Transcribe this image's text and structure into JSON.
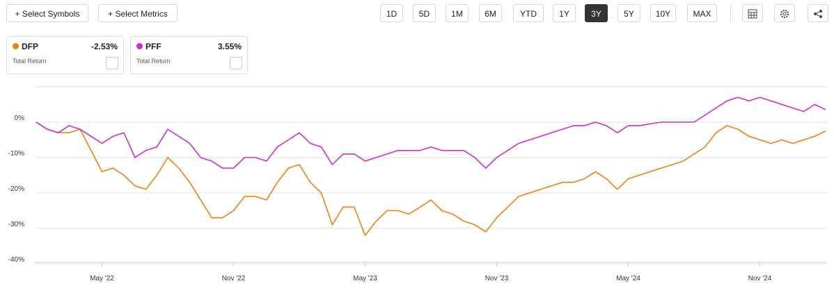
{
  "toolbar": {
    "left": [
      "+ Select Symbols",
      "+ Select Metrics"
    ],
    "ranges": [
      "1D",
      "5D",
      "1M",
      "6M",
      "YTD",
      "1Y",
      "3Y",
      "5Y",
      "10Y",
      "MAX"
    ],
    "active": "3Y"
  },
  "legend_cards": [
    {
      "name": "DFP",
      "value": "-2.53%",
      "sub": "Total Return"
    },
    {
      "name": "PFF",
      "value": "3.55%",
      "sub": "Total Return"
    }
  ],
  "chart_data": {
    "type": "line",
    "grid": true,
    "x": [
      0,
      0.5,
      1,
      1.5,
      2,
      2.5,
      3,
      3.5,
      4,
      4.5,
      5,
      5.5,
      6,
      6.5,
      7,
      7.5,
      8,
      8.5,
      9,
      9.5,
      10,
      10.5,
      11,
      11.5,
      12,
      12.5,
      13,
      13.5,
      14,
      14.5,
      15,
      15.5,
      16,
      16.5,
      17,
      17.5,
      18,
      18.5,
      19,
      19.5,
      20,
      20.5,
      21,
      21.5,
      22,
      22.5,
      23,
      23.5,
      24,
      24.5,
      25,
      25.5,
      26,
      26.5,
      27,
      27.5,
      28,
      28.5,
      29,
      29.5,
      30,
      30.5,
      31,
      31.5,
      32,
      32.5,
      33,
      33.5,
      34,
      34.5,
      35,
      35.5,
      36
    ],
    "xlim": [
      0,
      36
    ],
    "xticks": [
      {
        "value": 3,
        "label": "May '22"
      },
      {
        "value": 9,
        "label": "Nov '22"
      },
      {
        "value": 15,
        "label": "May '23"
      },
      {
        "value": 21,
        "label": "Nov '23"
      },
      {
        "value": 27,
        "label": "May '24"
      },
      {
        "value": 33,
        "label": "Nov '24"
      }
    ],
    "ylim": [
      -40,
      10
    ],
    "yticks": [
      {
        "value": 0,
        "label": "0%"
      },
      {
        "value": -10,
        "label": "-10%"
      },
      {
        "value": -20,
        "label": "-20%"
      },
      {
        "value": -30,
        "label": "-30%"
      },
      {
        "value": -40,
        "label": "-40%"
      }
    ],
    "series": [
      {
        "name": "DFP",
        "color": "#f27f0c",
        "values": [
          0,
          -2,
          -3,
          -3,
          -2,
          -8,
          -14,
          -13,
          -15,
          -18,
          -19,
          -15,
          -10,
          -13,
          -17,
          -22,
          -27,
          -27,
          -25,
          -21,
          -21,
          -22,
          -17,
          -13,
          -12,
          -17,
          -20,
          -29,
          -24,
          -24,
          -32,
          -28,
          -25,
          -25,
          -26,
          -24,
          -22,
          -25,
          -26,
          -28,
          -29,
          -31,
          -27,
          -24,
          -21,
          -20,
          -19,
          -18,
          -17,
          -17,
          -16,
          -14,
          -16,
          -19,
          -16,
          -15,
          -14,
          -13,
          -12,
          -11,
          -9,
          -7,
          -3,
          -1,
          -2,
          -4,
          -5,
          -6,
          -5,
          -6,
          -5,
          -4,
          -2.53
        ]
      },
      {
        "name": "PFF",
        "color": "#cc2ec6",
        "values": [
          0,
          -2,
          -3,
          -1,
          -2,
          -4,
          -6,
          -4,
          -3,
          -10,
          -8,
          -7,
          -2,
          -4,
          -6,
          -10,
          -11,
          -13,
          -13,
          -10,
          -10,
          -11,
          -7,
          -5,
          -3,
          -6,
          -7,
          -12,
          -9,
          -9,
          -11,
          -10,
          -9,
          -8,
          -8,
          -8,
          -7,
          -8,
          -8,
          -8,
          -10,
          -13,
          -10,
          -8,
          -6,
          -5,
          -4,
          -3,
          -2,
          -1,
          -1,
          0,
          -1,
          -3,
          -1,
          -1,
          -0.5,
          0,
          0,
          0,
          0,
          2,
          4,
          6,
          7,
          6,
          7,
          6,
          5,
          4,
          3,
          5,
          3.55
        ]
      }
    ]
  }
}
